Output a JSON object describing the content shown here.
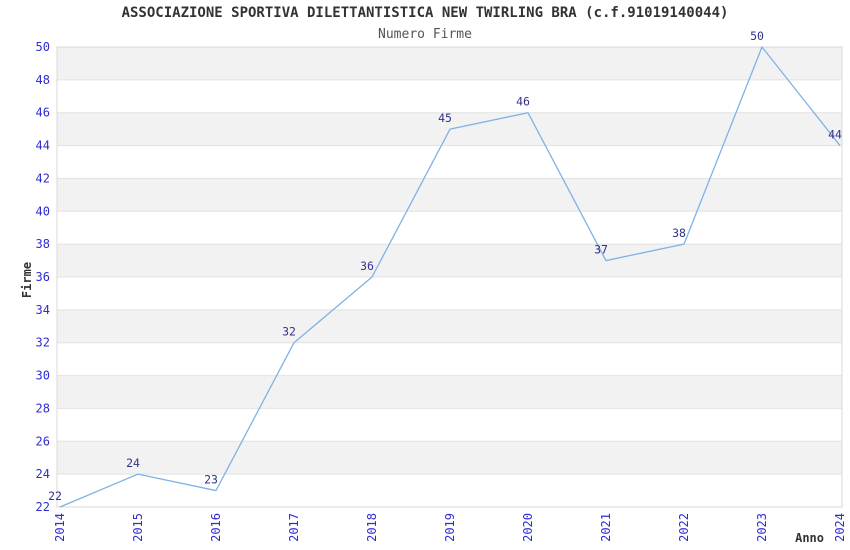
{
  "chart_data": {
    "type": "line",
    "title": "ASSOCIAZIONE SPORTIVA DILETTANTISTICA NEW TWIRLING BRA (c.f.91019140044)",
    "subtitle": "Numero Firme",
    "xlabel": "Anno",
    "ylabel": "Firme",
    "categories": [
      "2014",
      "2015",
      "2016",
      "2017",
      "2018",
      "2019",
      "2020",
      "2021",
      "2022",
      "2023",
      "2024"
    ],
    "values": [
      22,
      24,
      23,
      32,
      36,
      45,
      46,
      37,
      38,
      50,
      44
    ],
    "ylim": [
      22,
      50
    ],
    "ytick_step": 2,
    "grid": "horizontal",
    "legend": "none",
    "point_labels_visible": true,
    "colors": {
      "line": "#7fb2e5",
      "tick_label": "#2d2dd2",
      "value_label": "#32328c",
      "band_gray": "#f2f2f2",
      "gridline": "#e2e2e2",
      "plot_border": "#d8d8d8",
      "axis_title": "#333333",
      "title": "#333333",
      "subtitle": "#555555"
    }
  }
}
